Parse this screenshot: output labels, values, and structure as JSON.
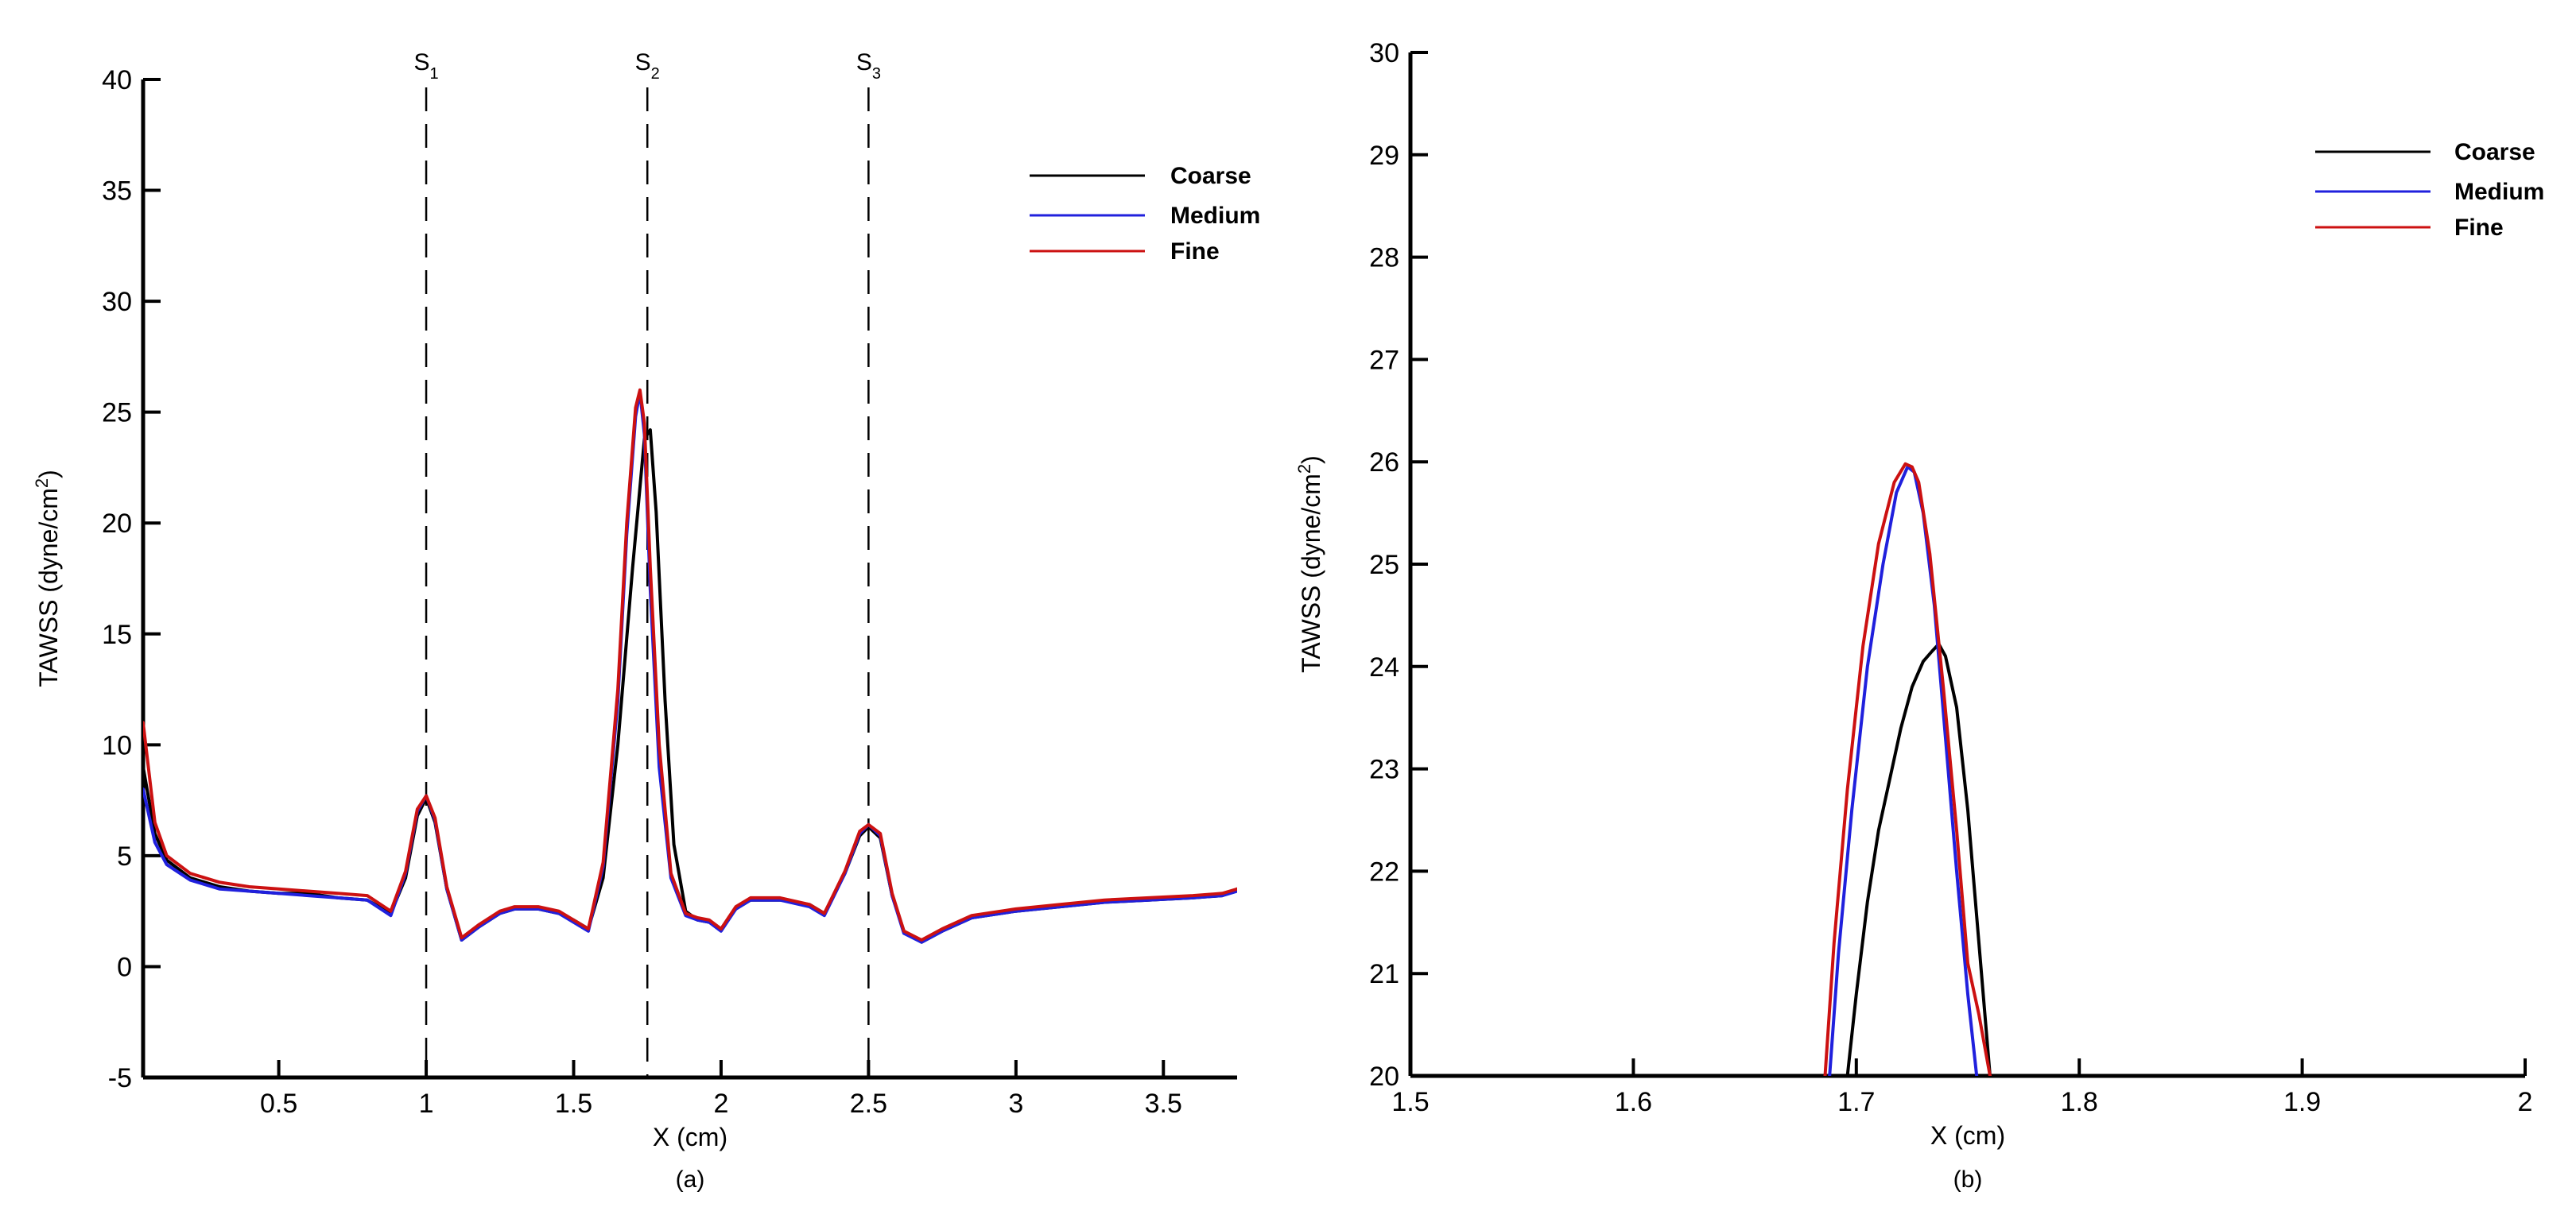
{
  "chart_data": [
    {
      "type": "line",
      "panel_label": "(a)",
      "xlabel": "X (cm)",
      "ylabel_main": "TAWSS (dyne/cm",
      "ylabel_sup": "2",
      "ylabel_end": ")",
      "xlim": [
        0.04,
        3.75
      ],
      "ylim": [
        -5,
        40
      ],
      "xticks": [
        0.5,
        1,
        1.5,
        2,
        2.5,
        3,
        3.5
      ],
      "xtick_labels": [
        "0.5",
        "1",
        "1.5",
        "2",
        "2.5",
        "3",
        "3.5"
      ],
      "yticks": [
        -5,
        0,
        5,
        10,
        15,
        20,
        25,
        30,
        35,
        40
      ],
      "ytick_labels": [
        "-5",
        "0",
        "5",
        "10",
        "15",
        "20",
        "25",
        "30",
        "35",
        "40"
      ],
      "legend_position": "top-right",
      "markers": [
        {
          "x": 1.0,
          "label": "S",
          "sub": "1"
        },
        {
          "x": 1.75,
          "label": "S",
          "sub": "2"
        },
        {
          "x": 2.5,
          "label": "S",
          "sub": "3"
        }
      ],
      "series": [
        {
          "name": "Coarse",
          "color": "#000000",
          "x": [
            0.04,
            0.08,
            0.12,
            0.2,
            0.3,
            0.4,
            0.5,
            0.6,
            0.7,
            0.8,
            0.88,
            0.93,
            0.97,
            1.0,
            1.03,
            1.07,
            1.12,
            1.18,
            1.25,
            1.3,
            1.38,
            1.45,
            1.5,
            1.55,
            1.6,
            1.65,
            1.7,
            1.74,
            1.76,
            1.78,
            1.81,
            1.84,
            1.88,
            1.92,
            1.96,
            2.0,
            2.05,
            2.1,
            2.2,
            2.3,
            2.35,
            2.42,
            2.47,
            2.5,
            2.54,
            2.58,
            2.62,
            2.68,
            2.75,
            2.85,
            3.0,
            3.15,
            3.3,
            3.45,
            3.6,
            3.7,
            3.75
          ],
          "y": [
            9.0,
            6.0,
            4.8,
            4.0,
            3.6,
            3.4,
            3.3,
            3.3,
            3.1,
            3.0,
            2.4,
            4.0,
            6.8,
            7.6,
            6.5,
            3.5,
            1.2,
            1.8,
            2.4,
            2.6,
            2.6,
            2.4,
            2.1,
            1.7,
            4.0,
            10.0,
            18.0,
            23.8,
            24.2,
            20.5,
            12.0,
            5.5,
            2.5,
            2.1,
            2.0,
            1.7,
            2.6,
            3.0,
            3.0,
            2.8,
            2.4,
            4.2,
            5.9,
            6.3,
            5.8,
            3.2,
            1.6,
            1.1,
            1.6,
            2.2,
            2.5,
            2.7,
            2.9,
            3.0,
            3.1,
            3.2,
            3.5
          ]
        },
        {
          "name": "Medium",
          "color": "#2020dd",
          "x": [
            0.04,
            0.08,
            0.12,
            0.2,
            0.3,
            0.4,
            0.5,
            0.6,
            0.7,
            0.8,
            0.88,
            0.93,
            0.97,
            1.0,
            1.03,
            1.07,
            1.12,
            1.18,
            1.25,
            1.3,
            1.38,
            1.45,
            1.5,
            1.55,
            1.6,
            1.65,
            1.68,
            1.71,
            1.725,
            1.74,
            1.76,
            1.79,
            1.83,
            1.88,
            1.92,
            1.96,
            2.0,
            2.05,
            2.1,
            2.2,
            2.3,
            2.35,
            2.42,
            2.47,
            2.5,
            2.54,
            2.58,
            2.62,
            2.68,
            2.75,
            2.85,
            3.0,
            3.15,
            3.3,
            3.45,
            3.6,
            3.7,
            3.75
          ],
          "y": [
            8.0,
            5.6,
            4.6,
            3.9,
            3.5,
            3.4,
            3.3,
            3.2,
            3.1,
            3.0,
            2.3,
            4.2,
            7.0,
            7.7,
            6.6,
            3.5,
            1.2,
            1.8,
            2.4,
            2.6,
            2.6,
            2.4,
            2.0,
            1.6,
            4.5,
            12.0,
            19.5,
            24.8,
            25.9,
            24.0,
            17.0,
            9.0,
            4.0,
            2.3,
            2.1,
            2.0,
            1.6,
            2.6,
            3.0,
            3.0,
            2.7,
            2.3,
            4.2,
            6.0,
            6.4,
            5.9,
            3.2,
            1.5,
            1.1,
            1.6,
            2.2,
            2.5,
            2.7,
            2.9,
            3.0,
            3.1,
            3.2,
            3.4
          ]
        },
        {
          "name": "Fine",
          "color": "#cc1111",
          "x": [
            0.04,
            0.08,
            0.12,
            0.2,
            0.3,
            0.4,
            0.5,
            0.6,
            0.7,
            0.8,
            0.88,
            0.93,
            0.97,
            1.0,
            1.03,
            1.07,
            1.12,
            1.18,
            1.25,
            1.3,
            1.38,
            1.45,
            1.5,
            1.55,
            1.6,
            1.65,
            1.68,
            1.71,
            1.725,
            1.74,
            1.76,
            1.79,
            1.83,
            1.88,
            1.92,
            1.96,
            2.0,
            2.05,
            2.1,
            2.2,
            2.3,
            2.35,
            2.42,
            2.47,
            2.5,
            2.54,
            2.58,
            2.62,
            2.68,
            2.75,
            2.85,
            3.0,
            3.15,
            3.3,
            3.45,
            3.6,
            3.7,
            3.75
          ],
          "y": [
            11.0,
            6.5,
            5.0,
            4.2,
            3.8,
            3.6,
            3.5,
            3.4,
            3.3,
            3.2,
            2.5,
            4.3,
            7.1,
            7.7,
            6.7,
            3.6,
            1.3,
            1.9,
            2.5,
            2.7,
            2.7,
            2.5,
            2.1,
            1.7,
            4.7,
            12.5,
            20.0,
            25.2,
            26.0,
            24.5,
            18.0,
            10.0,
            4.2,
            2.4,
            2.2,
            2.1,
            1.7,
            2.7,
            3.1,
            3.1,
            2.8,
            2.4,
            4.3,
            6.1,
            6.4,
            6.0,
            3.3,
            1.6,
            1.2,
            1.7,
            2.3,
            2.6,
            2.8,
            3.0,
            3.1,
            3.2,
            3.3,
            3.5
          ]
        }
      ]
    },
    {
      "type": "line",
      "panel_label": "(b)",
      "xlabel": "X (cm)",
      "ylabel_main": "TAWSS (dyne/cm",
      "ylabel_sup": "2",
      "ylabel_end": ")",
      "xlim": [
        1.5,
        2.0
      ],
      "ylim": [
        20,
        30
      ],
      "xticks": [
        1.5,
        1.6,
        1.7,
        1.8,
        1.9,
        2.0
      ],
      "xtick_labels": [
        "1.5",
        "1.6",
        "1.7",
        "1.8",
        "1.9",
        "2"
      ],
      "yticks": [
        20,
        21,
        22,
        23,
        24,
        25,
        26,
        27,
        28,
        29,
        30
      ],
      "ytick_labels": [
        "20",
        "21",
        "22",
        "23",
        "24",
        "25",
        "26",
        "27",
        "28",
        "29",
        "30"
      ],
      "legend_position": "top-right",
      "series": [
        {
          "name": "Coarse",
          "color": "#000000",
          "x": [
            1.696,
            1.7,
            1.705,
            1.71,
            1.715,
            1.72,
            1.725,
            1.73,
            1.734,
            1.737,
            1.74,
            1.745,
            1.75,
            1.755,
            1.76
          ],
          "y": [
            20.0,
            20.8,
            21.7,
            22.4,
            22.9,
            23.4,
            23.8,
            24.05,
            24.15,
            24.22,
            24.1,
            23.6,
            22.6,
            21.3,
            20.0
          ]
        },
        {
          "name": "Medium",
          "color": "#2020dd",
          "x": [
            1.688,
            1.692,
            1.698,
            1.705,
            1.712,
            1.718,
            1.723,
            1.726,
            1.73,
            1.735,
            1.74,
            1.745,
            1.75,
            1.754
          ],
          "y": [
            20.0,
            21.2,
            22.6,
            24.0,
            25.0,
            25.7,
            25.95,
            25.9,
            25.5,
            24.6,
            23.3,
            22.0,
            20.8,
            20.0
          ]
        },
        {
          "name": "Fine",
          "color": "#cc1111",
          "x": [
            1.686,
            1.69,
            1.696,
            1.703,
            1.71,
            1.717,
            1.722,
            1.725,
            1.728,
            1.733,
            1.739,
            1.745,
            1.75,
            1.755,
            1.76
          ],
          "y": [
            20.0,
            21.3,
            22.8,
            24.2,
            25.2,
            25.8,
            25.98,
            25.95,
            25.8,
            25.1,
            23.8,
            22.4,
            21.1,
            20.6,
            20.0
          ]
        }
      ]
    }
  ]
}
